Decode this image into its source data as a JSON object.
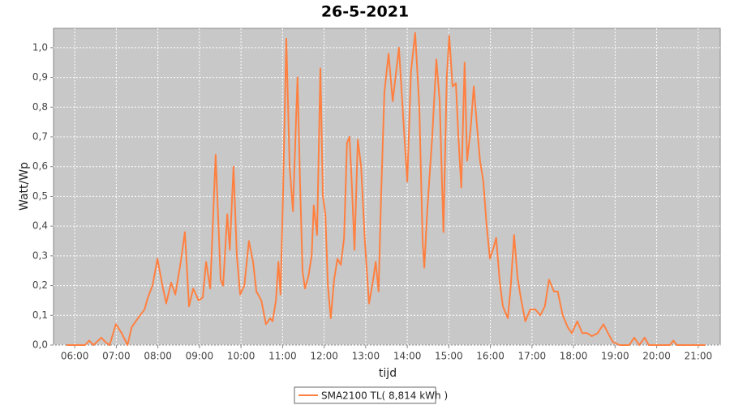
{
  "chart_data": {
    "type": "line",
    "title": "26-5-2021",
    "x_label": "tijd",
    "y_label": "Watt/Wp",
    "x": [
      5.8,
      6.25,
      6.35,
      6.45,
      6.64,
      6.74,
      6.84,
      6.99,
      7.13,
      7.27,
      7.37,
      7.52,
      7.68,
      7.76,
      7.87,
      7.99,
      8.11,
      8.2,
      8.32,
      8.42,
      8.54,
      8.65,
      8.75,
      8.85,
      8.98,
      9.08,
      9.16,
      9.26,
      9.39,
      9.51,
      9.57,
      9.67,
      9.73,
      9.82,
      9.9,
      9.98,
      10.08,
      10.19,
      10.29,
      10.37,
      10.49,
      10.6,
      10.7,
      10.76,
      10.84,
      10.9,
      10.95,
      11.01,
      11.09,
      11.17,
      11.25,
      11.31,
      11.36,
      11.42,
      11.48,
      11.54,
      11.62,
      11.7,
      11.75,
      11.83,
      11.91,
      11.97,
      12.03,
      12.09,
      12.16,
      12.24,
      12.32,
      12.4,
      12.48,
      12.55,
      12.61,
      12.67,
      12.73,
      12.81,
      12.89,
      12.98,
      13.08,
      13.18,
      13.24,
      13.31,
      13.37,
      13.45,
      13.55,
      13.65,
      13.7,
      13.8,
      13.9,
      14.0,
      14.09,
      14.19,
      14.29,
      14.37,
      14.41,
      14.48,
      14.6,
      14.7,
      14.78,
      14.87,
      14.95,
      15.01,
      15.09,
      15.17,
      15.23,
      15.3,
      15.38,
      15.44,
      15.52,
      15.6,
      15.67,
      15.75,
      15.83,
      15.91,
      15.99,
      16.06,
      16.14,
      16.22,
      16.3,
      16.42,
      16.49,
      16.57,
      16.65,
      16.73,
      16.84,
      16.96,
      17.08,
      17.2,
      17.31,
      17.41,
      17.53,
      17.62,
      17.74,
      17.86,
      17.96,
      18.09,
      18.21,
      18.33,
      18.44,
      18.58,
      18.72,
      18.83,
      18.95,
      19.11,
      19.34,
      19.46,
      19.58,
      19.71,
      19.81,
      20.32,
      20.4,
      20.49,
      21.17
    ],
    "series": [
      {
        "name": "SMA2100 TL( 8,814 kWh )",
        "color": "#ff8040",
        "values": [
          0,
          0,
          0.015,
          0,
          0.025,
          0.01,
          0,
          0.07,
          0.04,
          0,
          0.06,
          0.09,
          0.12,
          0.16,
          0.2,
          0.29,
          0.2,
          0.14,
          0.21,
          0.17,
          0.27,
          0.38,
          0.13,
          0.19,
          0.15,
          0.16,
          0.28,
          0.19,
          0.64,
          0.22,
          0.2,
          0.44,
          0.32,
          0.6,
          0.3,
          0.17,
          0.2,
          0.35,
          0.28,
          0.18,
          0.15,
          0.07,
          0.09,
          0.08,
          0.15,
          0.28,
          0.17,
          0.5,
          1.03,
          0.6,
          0.45,
          0.7,
          0.9,
          0.55,
          0.25,
          0.19,
          0.23,
          0.3,
          0.47,
          0.37,
          0.93,
          0.5,
          0.44,
          0.2,
          0.09,
          0.22,
          0.29,
          0.27,
          0.36,
          0.68,
          0.7,
          0.53,
          0.32,
          0.69,
          0.6,
          0.35,
          0.14,
          0.22,
          0.28,
          0.18,
          0.5,
          0.85,
          0.98,
          0.82,
          0.88,
          1.0,
          0.77,
          0.55,
          0.92,
          1.05,
          0.8,
          0.35,
          0.26,
          0.45,
          0.7,
          0.96,
          0.82,
          0.38,
          0.9,
          1.04,
          0.87,
          0.88,
          0.7,
          0.53,
          0.95,
          0.62,
          0.72,
          0.87,
          0.75,
          0.62,
          0.55,
          0.4,
          0.29,
          0.32,
          0.36,
          0.22,
          0.13,
          0.09,
          0.2,
          0.37,
          0.23,
          0.16,
          0.08,
          0.12,
          0.12,
          0.1,
          0.13,
          0.22,
          0.18,
          0.18,
          0.1,
          0.06,
          0.04,
          0.08,
          0.04,
          0.04,
          0.03,
          0.04,
          0.07,
          0.04,
          0.01,
          0,
          0,
          0.025,
          0,
          0.025,
          0,
          0,
          0.015,
          0,
          0
        ]
      }
    ],
    "xlim": [
      5.49,
      21.53
    ],
    "xticks": [
      {
        "value": 6,
        "label": "06:00"
      },
      {
        "value": 7,
        "label": "07:00"
      },
      {
        "value": 8,
        "label": "08:00"
      },
      {
        "value": 9,
        "label": "09:00"
      },
      {
        "value": 10,
        "label": "10:00"
      },
      {
        "value": 11,
        "label": "11:00"
      },
      {
        "value": 12,
        "label": "12:00"
      },
      {
        "value": 13,
        "label": "13:00"
      },
      {
        "value": 14,
        "label": "14:00"
      },
      {
        "value": 15,
        "label": "15:00"
      },
      {
        "value": 16,
        "label": "16:00"
      },
      {
        "value": 17,
        "label": "17:00"
      },
      {
        "value": 18,
        "label": "18:00"
      },
      {
        "value": 19,
        "label": "19:00"
      },
      {
        "value": 20,
        "label": "20:00"
      },
      {
        "value": 21,
        "label": "21:00"
      }
    ],
    "ylim": [
      0,
      1.065
    ],
    "yticks": [
      {
        "value": 0,
        "label": "0,0"
      },
      {
        "value": 0.1,
        "label": "0,1"
      },
      {
        "value": 0.2,
        "label": "0,2"
      },
      {
        "value": 0.3,
        "label": "0,3"
      },
      {
        "value": 0.4,
        "label": "0,4"
      },
      {
        "value": 0.5,
        "label": "0,5"
      },
      {
        "value": 0.6,
        "label": "0,6"
      },
      {
        "value": 0.7,
        "label": "0,7"
      },
      {
        "value": 0.8,
        "label": "0,8"
      },
      {
        "value": 0.9,
        "label": "0,9"
      },
      {
        "value": 1.0,
        "label": "1,0"
      }
    ],
    "grid": true
  }
}
